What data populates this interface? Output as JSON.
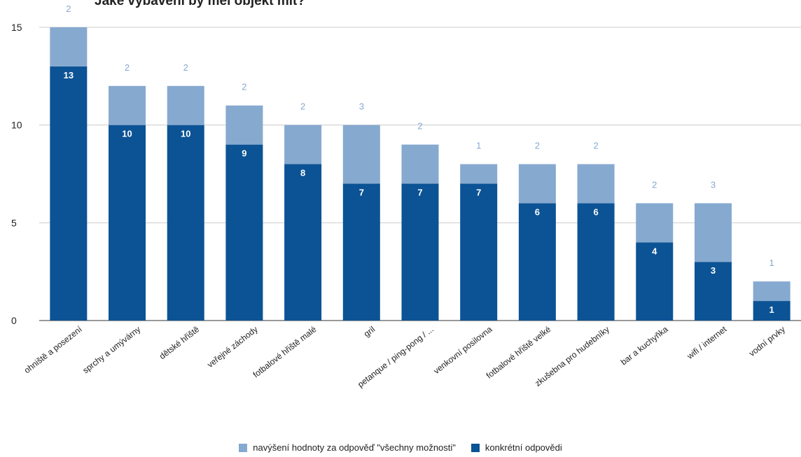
{
  "title": "Jaké vybavení by měl objekt mít?",
  "chart_data": {
    "type": "bar",
    "stacked": true,
    "categories": [
      "ohniště a posezení",
      "sprchy a umývárny",
      "dětské hřiště",
      "veřejné záchody",
      "fotbalové hřiště malé",
      "gril",
      "petanque / ping-pong / ...",
      "venkovní posilovna",
      "fotbalové hřiště velké",
      "zkušebna pro hudebníky",
      "bar a kuchyňka",
      "wifi / internet",
      "vodní prvky"
    ],
    "series": [
      {
        "name": "konkrétní odpovědi",
        "color": "#0b5394",
        "values": [
          13,
          10,
          10,
          9,
          8,
          7,
          7,
          7,
          6,
          6,
          4,
          3,
          1
        ]
      },
      {
        "name": "navýšení hodnoty za odpověď \"všechny možnosti\"",
        "color": "#86a9cf",
        "values": [
          2,
          2,
          2,
          2,
          2,
          3,
          2,
          1,
          2,
          2,
          2,
          3,
          1
        ]
      }
    ],
    "ylim": [
      0,
      15
    ],
    "yticks": [
      "0",
      "5",
      "10",
      "15"
    ],
    "grid": true,
    "legend_position": "bottom"
  },
  "legend": {
    "increase_label": "navýšení hodnoty za odpověď \"všechny možnosti\"",
    "specific_label": "konkrétní odpovědi",
    "increase_color": "#86a9cf",
    "specific_color": "#0b5394"
  }
}
